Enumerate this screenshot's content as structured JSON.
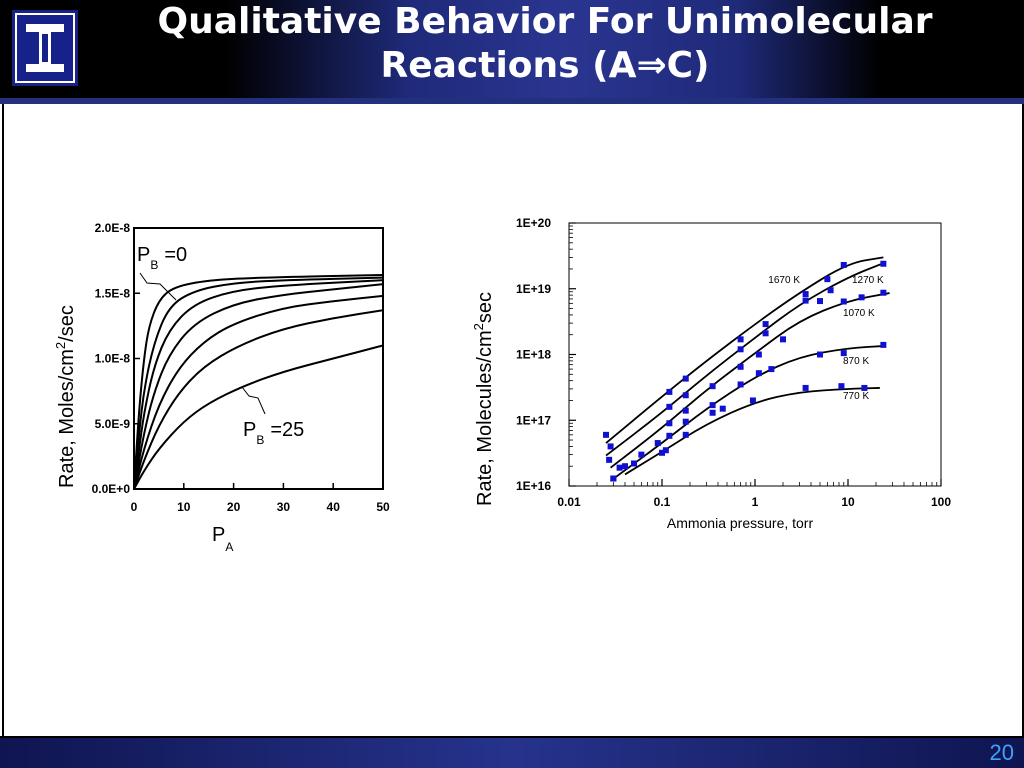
{
  "slide": {
    "title_line1": "Qualitative Behavior For Unimolecular",
    "title_line2_prefix": "Reactions (A",
    "title_line2_arrow": "⇒",
    "title_line2_suffix": "C)",
    "page_number": "20",
    "logo_glyph": "I",
    "logo_icon": "illinois-block-i-icon"
  },
  "chart_data": [
    {
      "type": "line",
      "xlabel_main": "P",
      "xlabel_sub": "A",
      "ylabel_main": "Rate, Moles/cm",
      "ylabel_sup": "2",
      "ylabel_suffix": "/sec",
      "xlim": [
        0,
        50
      ],
      "ylim": [
        0,
        2e-08
      ],
      "x_ticks": [
        0,
        10,
        20,
        30,
        40,
        50
      ],
      "x_tick_labels": [
        "0",
        "10",
        "20",
        "30",
        "40",
        "50"
      ],
      "y_ticks": [
        0,
        5e-09,
        1e-08,
        1.5e-08,
        2e-08
      ],
      "y_tick_labels": [
        "0.0E+0",
        "5.0E-9",
        "1.0E-8",
        "1.5E-8",
        "2.0E-8"
      ],
      "grid": false,
      "annotations": [
        {
          "main": "P",
          "sub": "B",
          "suffix": "=0"
        },
        {
          "main": "P",
          "sub": "B",
          "suffix": "=25"
        }
      ],
      "series": [
        {
          "values": [
            [
              0,
              0
            ],
            [
              1,
              6e-09
            ],
            [
              2,
              1e-08
            ],
            [
              3,
              1.25e-08
            ],
            [
              5,
              1.45e-08
            ],
            [
              8,
              1.55e-08
            ],
            [
              15,
              1.6e-08
            ],
            [
              25,
              1.62e-08
            ],
            [
              50,
              1.64e-08
            ]
          ]
        },
        {
          "values": [
            [
              0,
              0
            ],
            [
              1,
              4.2e-09
            ],
            [
              2,
              7.6e-09
            ],
            [
              4,
              1.12e-08
            ],
            [
              7,
              1.4e-08
            ],
            [
              12,
              1.52e-08
            ],
            [
              20,
              1.58e-08
            ],
            [
              30,
              1.6e-08
            ],
            [
              50,
              1.62e-08
            ]
          ]
        },
        {
          "values": [
            [
              0,
              0
            ],
            [
              1,
              3e-09
            ],
            [
              2,
              5.8e-09
            ],
            [
              4,
              9.4e-09
            ],
            [
              7,
              1.22e-08
            ],
            [
              12,
              1.42e-08
            ],
            [
              20,
              1.52e-08
            ],
            [
              30,
              1.56e-08
            ],
            [
              50,
              1.6e-08
            ]
          ]
        },
        {
          "values": [
            [
              0,
              0
            ],
            [
              2,
              4.3e-09
            ],
            [
              4,
              7.4e-09
            ],
            [
              7,
              1.03e-08
            ],
            [
              12,
              1.27e-08
            ],
            [
              20,
              1.42e-08
            ],
            [
              30,
              1.49e-08
            ],
            [
              40,
              1.53e-08
            ],
            [
              50,
              1.57e-08
            ]
          ]
        },
        {
          "values": [
            [
              0,
              0
            ],
            [
              2,
              3.1e-09
            ],
            [
              5,
              6.5e-09
            ],
            [
              9,
              9.3e-09
            ],
            [
              14,
              1.13e-08
            ],
            [
              20,
              1.27e-08
            ],
            [
              30,
              1.39e-08
            ],
            [
              40,
              1.44e-08
            ],
            [
              50,
              1.48e-08
            ]
          ]
        },
        {
          "values": [
            [
              0,
              0
            ],
            [
              2,
              2.2e-09
            ],
            [
              5,
              4.9e-09
            ],
            [
              9,
              7.4e-09
            ],
            [
              14,
              9.4e-09
            ],
            [
              21,
              1.1e-08
            ],
            [
              30,
              1.23e-08
            ],
            [
              40,
              1.31e-08
            ],
            [
              50,
              1.37e-08
            ]
          ]
        },
        {
          "values": [
            [
              0,
              0
            ],
            [
              2,
              1.4e-09
            ],
            [
              5,
              3.1e-09
            ],
            [
              10,
              5.2e-09
            ],
            [
              15,
              6.6e-09
            ],
            [
              22,
              7.9e-09
            ],
            [
              30,
              9e-09
            ],
            [
              40,
              1e-08
            ],
            [
              50,
              1.1e-08
            ]
          ]
        }
      ]
    },
    {
      "type": "scatter",
      "xlabel": "Ammonia pressure, torr",
      "ylabel_main": "Rate, Molecules/cm",
      "ylabel_sup": "2",
      "ylabel_suffix": "sec",
      "xscale": "log",
      "yscale": "log",
      "xlim": [
        0.01,
        100
      ],
      "ylim": [
        1e+16,
        1e+20
      ],
      "x_ticks": [
        0.01,
        0.1,
        1,
        10,
        100
      ],
      "x_tick_labels": [
        "0.01",
        "0.1",
        "1",
        "10",
        "100"
      ],
      "y_ticks": [
        1e+16,
        1e+17,
        1e+18,
        1e+19,
        1e+20
      ],
      "y_tick_labels": [
        "1E+16",
        "1E+17",
        "1E+18",
        "1E+19",
        "1E+20"
      ],
      "grid": false,
      "marker_color": "#1010d0",
      "series": [
        {
          "name": "1670 K",
          "points": [
            [
              0.025,
              6e+16
            ],
            [
              0.028,
              4e+16
            ],
            [
              0.12,
              2.7e+17
            ],
            [
              0.18,
              4.3e+17
            ],
            [
              0.7,
              1.7e+18
            ],
            [
              1.3,
              2.9e+18
            ],
            [
              3.5,
              8.3e+18
            ],
            [
              6,
              1.4e+19
            ],
            [
              9,
              2.3e+19
            ]
          ],
          "fit": [
            [
              0.025,
              4.5e+16
            ],
            [
              0.1,
              2.3e+17
            ],
            [
              0.3,
              8e+17
            ],
            [
              1,
              2.9e+18
            ],
            [
              3,
              8.7e+18
            ],
            [
              10,
              2.45e+19
            ],
            [
              24,
              3e+19
            ]
          ]
        },
        {
          "name": "1270 K",
          "points": [
            [
              0.027,
              2.5e+16
            ],
            [
              0.04,
              2e+16
            ],
            [
              0.12,
              1.6e+17
            ],
            [
              0.18,
              2.4e+17
            ],
            [
              0.7,
              1.2e+18
            ],
            [
              1.3,
              2.1e+18
            ],
            [
              3.5,
              6.6e+18
            ],
            [
              6.5,
              9.5e+18
            ],
            [
              24,
              2.4e+19
            ]
          ],
          "fit": [
            [
              0.025,
              2.9e+16
            ],
            [
              0.1,
              1.3e+17
            ],
            [
              0.3,
              4.8e+17
            ],
            [
              1,
              1.8e+18
            ],
            [
              3,
              5.8e+18
            ],
            [
              10,
              1.5e+19
            ],
            [
              25,
              2.5e+19
            ]
          ]
        },
        {
          "name": "1070 K",
          "points": [
            [
              0.035,
              1.9e+16
            ],
            [
              0.05,
              2.2e+16
            ],
            [
              0.09,
              4.5e+16
            ],
            [
              0.12,
              9e+16
            ],
            [
              0.18,
              1.4e+17
            ],
            [
              0.35,
              3.3e+17
            ],
            [
              0.7,
              6.5e+17
            ],
            [
              1.1,
              1e+18
            ],
            [
              2,
              1.7e+18
            ],
            [
              5,
              6.5e+18
            ],
            [
              9,
              6.4e+18
            ],
            [
              14,
              7.4e+18
            ],
            [
              24,
              8.7e+18
            ]
          ],
          "fit": [
            [
              0.028,
              1.9e+16
            ],
            [
              0.1,
              7.6e+16
            ],
            [
              0.3,
              2.9e+17
            ],
            [
              1,
              1.05e+18
            ],
            [
              3,
              3.3e+18
            ],
            [
              10,
              6.6e+18
            ],
            [
              28,
              8.6e+18
            ]
          ]
        },
        {
          "name": "870 K",
          "points": [
            [
              0.03,
              1.3e+16
            ],
            [
              0.06,
              3e+16
            ],
            [
              0.1,
              3.2e+16
            ],
            [
              0.12,
              5.8e+16
            ],
            [
              0.18,
              9.5e+16
            ],
            [
              0.35,
              1.7e+17
            ],
            [
              0.7,
              3.5e+17
            ],
            [
              1.1,
              5.2e+17
            ],
            [
              1.5,
              6e+17
            ],
            [
              5,
              1e+18
            ],
            [
              9,
              1.05e+18
            ],
            [
              24,
              1.4e+18
            ]
          ],
          "fit": [
            [
              0.028,
              1.2e+16
            ],
            [
              0.1,
              4.5e+16
            ],
            [
              0.3,
              1.5e+17
            ],
            [
              1,
              4.6e+17
            ],
            [
              3,
              9.3e+17
            ],
            [
              10,
              1.25e+18
            ],
            [
              25,
              1.35e+18
            ]
          ]
        },
        {
          "name": "770 K",
          "points": [
            [
              0.03,
              1.3e+16
            ],
            [
              0.11,
              3.5e+16
            ],
            [
              0.18,
              6e+16
            ],
            [
              0.35,
              1.3e+17
            ],
            [
              0.45,
              1.5e+17
            ],
            [
              0.95,
              2e+17
            ],
            [
              3.5,
              3.1e+17
            ],
            [
              8.5,
              3.3e+17
            ],
            [
              15,
              3.1e+17
            ]
          ],
          "fit": [
            [
              0.04,
              1.5e+16
            ],
            [
              0.1,
              3.3e+16
            ],
            [
              0.3,
              8.8e+16
            ],
            [
              1,
              1.9e+17
            ],
            [
              3,
              2.7e+17
            ],
            [
              10,
              3e+17
            ],
            [
              22,
              3.1e+17
            ]
          ]
        }
      ]
    }
  ]
}
